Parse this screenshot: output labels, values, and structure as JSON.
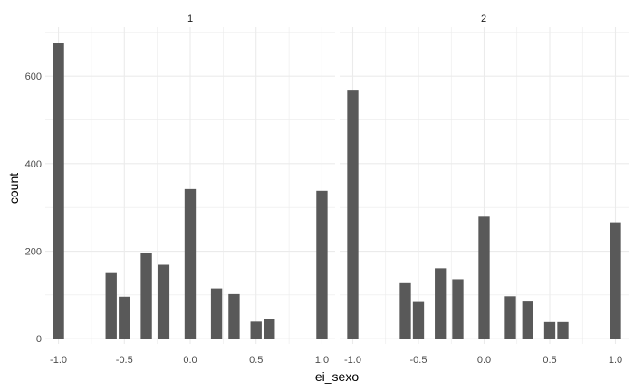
{
  "chart_data": {
    "type": "bar",
    "xlabel": "ei_sexo",
    "ylabel": "count",
    "bar_color": "#595959",
    "grid_color": "#ebebeb",
    "grid": true,
    "x_range": [
      -1.1,
      1.1
    ],
    "y_range": [
      -12,
      712
    ],
    "x_ticks": [
      -1.0,
      -0.5,
      0.0,
      0.5,
      1.0
    ],
    "x_tick_labels": [
      "-1.0",
      "-0.5",
      "0.0",
      "0.5",
      "1.0"
    ],
    "y_ticks": [
      0,
      200,
      400,
      600
    ],
    "y_tick_labels": [
      "0",
      "200",
      "400",
      "600"
    ],
    "bar_width": 0.085,
    "panels": [
      {
        "label": "1",
        "x": [
          -1.0,
          -0.6,
          -0.5,
          -0.333,
          -0.2,
          0.0,
          0.2,
          0.333,
          0.5,
          0.6,
          1.0
        ],
        "values": [
          676,
          150,
          96,
          196,
          169,
          342,
          115,
          102,
          39,
          45,
          338
        ]
      },
      {
        "label": "2",
        "x": [
          -1.0,
          -0.6,
          -0.5,
          -0.333,
          -0.2,
          0.0,
          0.2,
          0.333,
          0.5,
          0.6,
          1.0
        ],
        "values": [
          569,
          127,
          84,
          161,
          136,
          279,
          97,
          85,
          38,
          38,
          266
        ]
      }
    ]
  }
}
